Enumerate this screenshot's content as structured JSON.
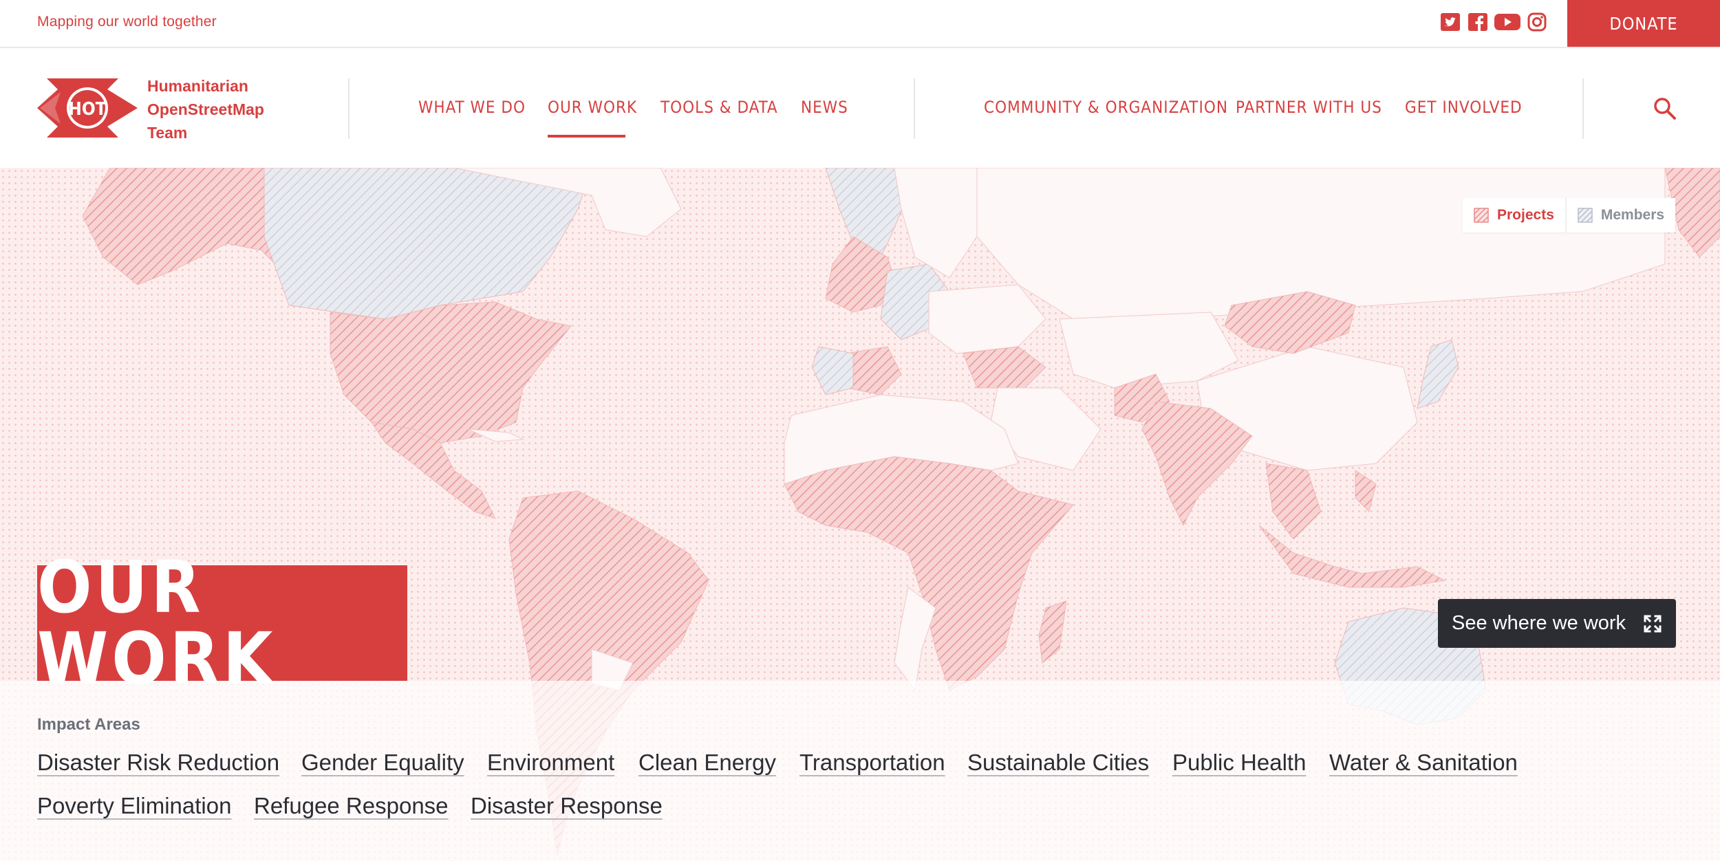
{
  "topbar": {
    "tagline": "Mapping our world together",
    "social": [
      {
        "icon": "twitter-icon"
      },
      {
        "icon": "facebook-icon"
      },
      {
        "icon": "youtube-icon"
      },
      {
        "icon": "instagram-icon"
      }
    ],
    "donate_label": "DONATE"
  },
  "header": {
    "logo_mark": "HOT",
    "logo_lines": [
      "Humanitarian",
      "OpenStreetMap",
      "Team"
    ],
    "nav_primary": [
      {
        "label": "WHAT WE DO",
        "active": false
      },
      {
        "label": "OUR WORK",
        "active": true
      },
      {
        "label": "TOOLS & DATA",
        "active": false
      },
      {
        "label": "NEWS",
        "active": false
      }
    ],
    "nav_secondary": [
      {
        "label": "COMMUNITY & ORGANIZATION"
      },
      {
        "label": "PARTNER WITH US"
      },
      {
        "label": "GET INVOLVED"
      }
    ],
    "search_icon": "search-icon"
  },
  "map": {
    "legend": [
      {
        "label": "Projects",
        "color": "#d73f3f"
      },
      {
        "label": "Members",
        "color": "#8a8f98"
      }
    ],
    "see_where_label": "See where we work",
    "expand_icon": "expand-icon"
  },
  "hero": {
    "title": "OUR WORK"
  },
  "impact": {
    "label": "Impact Areas",
    "areas": [
      "Disaster Risk Reduction",
      "Gender Equality",
      "Environment",
      "Clean Energy",
      "Transportation",
      "Sustainable Cities",
      "Public Health",
      "Water & Sanitation",
      "Poverty Elimination",
      "Refugee Response",
      "Disaster Response"
    ]
  },
  "colors": {
    "accent": "#d73f3f",
    "dark": "#2b2d33",
    "map_background": "#fdeeee",
    "member_fill": "#e6e9ef"
  }
}
